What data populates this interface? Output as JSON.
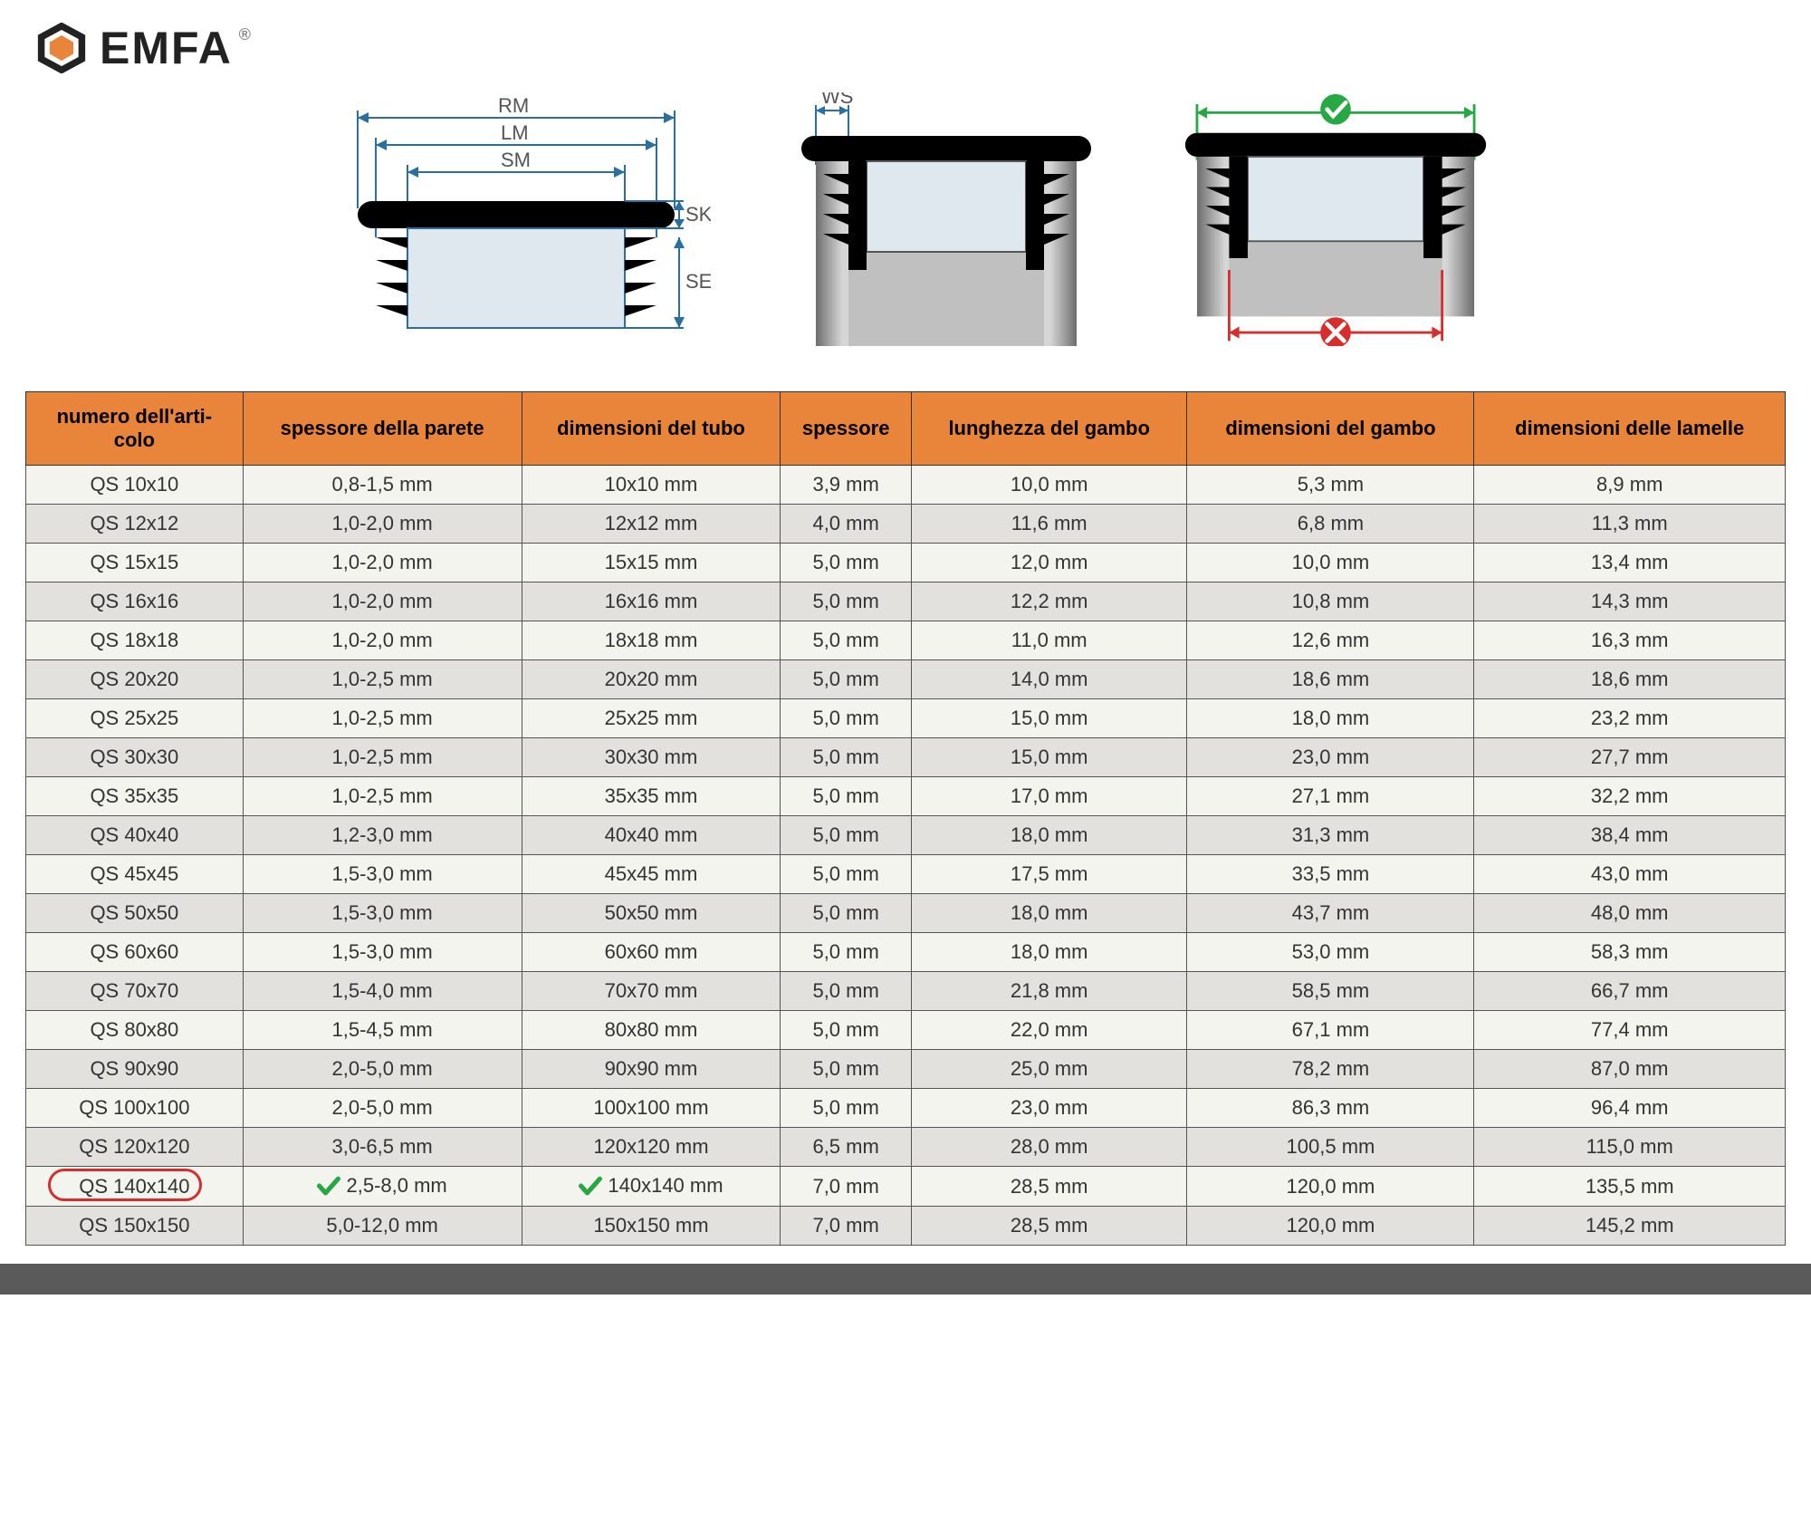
{
  "brand": {
    "name": "EMFA",
    "accent_color": "#e8853a",
    "text_color": "#222222"
  },
  "diagram_labels": {
    "rm": "RM",
    "lm": "LM",
    "sm": "SM",
    "sk": "SK",
    "se": "SE",
    "ws": "WS"
  },
  "correct_color": "#27a844",
  "wrong_color": "#d62e2e",
  "table": {
    "header_bg": "#e8853a",
    "odd_row_bg": "#f4f4ee",
    "even_row_bg": "#e2e1de",
    "border_color": "#333333",
    "highlight_color": "#d62e2e",
    "check_color": "#27a844",
    "font_size": 22,
    "columns": [
      "numero dell'arti-\ncolo",
      "spessore della parete",
      "dimensioni del tubo",
      "spessore",
      "lunghezza del gambo",
      "dimensioni del gambo",
      "dimensioni delle lamelle"
    ],
    "highlighted_row_index": 18,
    "check_columns_for_highlight": [
      1,
      2
    ],
    "rows": [
      [
        "QS 10x10",
        "0,8-1,5 mm",
        "10x10 mm",
        "3,9 mm",
        "10,0 mm",
        "5,3 mm",
        "8,9 mm"
      ],
      [
        "QS 12x12",
        "1,0-2,0 mm",
        "12x12 mm",
        "4,0 mm",
        "11,6 mm",
        "6,8 mm",
        "11,3 mm"
      ],
      [
        "QS 15x15",
        "1,0-2,0 mm",
        "15x15 mm",
        "5,0 mm",
        "12,0 mm",
        "10,0 mm",
        "13,4 mm"
      ],
      [
        "QS 16x16",
        "1,0-2,0 mm",
        "16x16 mm",
        "5,0 mm",
        "12,2 mm",
        "10,8 mm",
        "14,3 mm"
      ],
      [
        "QS 18x18",
        "1,0-2,0 mm",
        "18x18 mm",
        "5,0 mm",
        "11,0 mm",
        "12,6 mm",
        "16,3 mm"
      ],
      [
        "QS 20x20",
        "1,0-2,5 mm",
        "20x20 mm",
        "5,0 mm",
        "14,0 mm",
        "18,6 mm",
        "18,6 mm"
      ],
      [
        "QS 25x25",
        "1,0-2,5 mm",
        "25x25 mm",
        "5,0 mm",
        "15,0 mm",
        "18,0 mm",
        "23,2 mm"
      ],
      [
        "QS 30x30",
        "1,0-2,5 mm",
        "30x30 mm",
        "5,0 mm",
        "15,0 mm",
        "23,0 mm",
        "27,7 mm"
      ],
      [
        "QS 35x35",
        "1,0-2,5 mm",
        "35x35 mm",
        "5,0 mm",
        "17,0 mm",
        "27,1 mm",
        "32,2 mm"
      ],
      [
        "QS 40x40",
        "1,2-3,0 mm",
        "40x40 mm",
        "5,0 mm",
        "18,0 mm",
        "31,3 mm",
        "38,4 mm"
      ],
      [
        "QS 45x45",
        "1,5-3,0 mm",
        "45x45 mm",
        "5,0 mm",
        "17,5 mm",
        "33,5 mm",
        "43,0 mm"
      ],
      [
        "QS 50x50",
        "1,5-3,0 mm",
        "50x50 mm",
        "5,0 mm",
        "18,0 mm",
        "43,7 mm",
        "48,0 mm"
      ],
      [
        "QS 60x60",
        "1,5-3,0 mm",
        "60x60 mm",
        "5,0 mm",
        "18,0 mm",
        "53,0 mm",
        "58,3 mm"
      ],
      [
        "QS 70x70",
        "1,5-4,0 mm",
        "70x70 mm",
        "5,0 mm",
        "21,8 mm",
        "58,5 mm",
        "66,7 mm"
      ],
      [
        "QS 80x80",
        "1,5-4,5 mm",
        "80x80 mm",
        "5,0 mm",
        "22,0 mm",
        "67,1 mm",
        "77,4 mm"
      ],
      [
        "QS 90x90",
        "2,0-5,0 mm",
        "90x90 mm",
        "5,0 mm",
        "25,0 mm",
        "78,2 mm",
        "87,0 mm"
      ],
      [
        "QS 100x100",
        "2,0-5,0 mm",
        "100x100 mm",
        "5,0 mm",
        "23,0 mm",
        "86,3 mm",
        "96,4 mm"
      ],
      [
        "QS 120x120",
        "3,0-6,5 mm",
        "120x120 mm",
        "6,5 mm",
        "28,0 mm",
        "100,5 mm",
        "115,0 mm"
      ],
      [
        "QS 140x140",
        "2,5-8,0 mm",
        "140x140 mm",
        "7,0 mm",
        "28,5 mm",
        "120,0 mm",
        "135,5 mm"
      ],
      [
        "QS 150x150",
        "5,0-12,0 mm",
        "150x150 mm",
        "7,0 mm",
        "28,5 mm",
        "120,0 mm",
        "145,2 mm"
      ]
    ]
  }
}
